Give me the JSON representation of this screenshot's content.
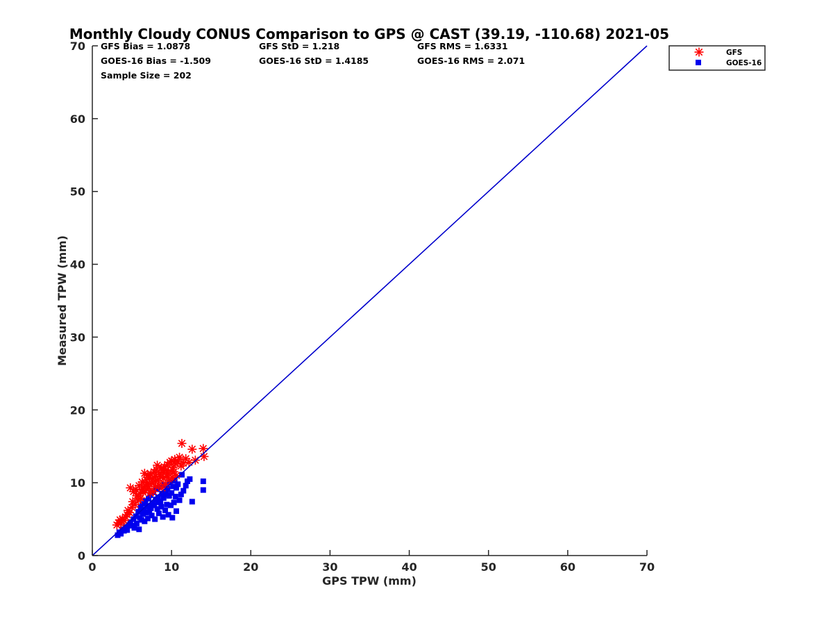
{
  "chart_data": {
    "type": "scatter",
    "title": "Monthly Cloudy CONUS Comparison to GPS @ CAST (39.19, -110.68) 2021-05",
    "xlabel": "GPS TPW (mm)",
    "ylabel": "Measured TPW (mm)",
    "xlim": [
      0,
      70
    ],
    "ylim": [
      0,
      70
    ],
    "xticks": [
      "0",
      "10",
      "20",
      "30",
      "40",
      "50",
      "60",
      "70"
    ],
    "yticks": [
      "0",
      "10",
      "20",
      "30",
      "40",
      "50",
      "60",
      "70"
    ],
    "grid": false,
    "legend_position": "top-right",
    "stats": {
      "gfs_bias": "GFS Bias = 1.0878",
      "goes_bias": "GOES-16 Bias = -1.509",
      "gfs_std": "GFS StD = 1.218",
      "goes_std": "GOES-16 StD = 1.4185",
      "gfs_rms": "GFS RMS = 1.6331",
      "goes_rms": "GOES-16 RMS = 2.071",
      "sample_size": "Sample Size = 202"
    },
    "reference_line": {
      "x": [
        0,
        70
      ],
      "y": [
        0,
        70
      ],
      "color": "#0000cc"
    },
    "series": [
      {
        "name": "GFS",
        "marker": "asterisk",
        "color": "#ff0000",
        "points": [
          [
            3.1,
            4.2
          ],
          [
            3.3,
            4.5
          ],
          [
            3.5,
            4.9
          ],
          [
            3.6,
            4.4
          ],
          [
            3.8,
            5.0
          ],
          [
            4.0,
            4.8
          ],
          [
            4.2,
            5.3
          ],
          [
            4.4,
            5.6
          ],
          [
            4.5,
            6.2
          ],
          [
            4.7,
            5.9
          ],
          [
            4.8,
            9.3
          ],
          [
            5.0,
            6.6
          ],
          [
            5.1,
            7.4
          ],
          [
            5.2,
            8.8
          ],
          [
            5.4,
            7.0
          ],
          [
            5.5,
            9.1
          ],
          [
            5.6,
            8.2
          ],
          [
            5.8,
            7.6
          ],
          [
            5.9,
            9.6
          ],
          [
            6.0,
            8.5
          ],
          [
            6.1,
            7.9
          ],
          [
            6.2,
            9.0
          ],
          [
            6.3,
            10.1
          ],
          [
            6.4,
            8.7
          ],
          [
            6.5,
            9.4
          ],
          [
            6.6,
            11.3
          ],
          [
            6.7,
            8.9
          ],
          [
            6.8,
            10.4
          ],
          [
            6.9,
            9.8
          ],
          [
            7.0,
            11.0
          ],
          [
            7.1,
            9.2
          ],
          [
            7.2,
            10.7
          ],
          [
            7.3,
            8.6
          ],
          [
            7.4,
            11.2
          ],
          [
            7.5,
            9.9
          ],
          [
            7.6,
            10.5
          ],
          [
            7.7,
            8.8
          ],
          [
            7.8,
            11.5
          ],
          [
            7.9,
            10.2
          ],
          [
            8.0,
            9.5
          ],
          [
            8.1,
            11.8
          ],
          [
            8.2,
            12.4
          ],
          [
            8.3,
            10.3
          ],
          [
            8.4,
            9.7
          ],
          [
            8.5,
            11.1
          ],
          [
            8.6,
            10.8
          ],
          [
            8.7,
            12.0
          ],
          [
            8.8,
            9.3
          ],
          [
            8.9,
            11.4
          ],
          [
            9.0,
            10.6
          ],
          [
            9.1,
            12.2
          ],
          [
            9.2,
            9.8
          ],
          [
            9.3,
            11.7
          ],
          [
            9.4,
            10.9
          ],
          [
            9.5,
            12.5
          ],
          [
            9.6,
            11.3
          ],
          [
            9.7,
            10.4
          ],
          [
            9.8,
            12.8
          ],
          [
            9.9,
            11.6
          ],
          [
            10.0,
            13.0
          ],
          [
            10.1,
            10.7
          ],
          [
            10.2,
            12.1
          ],
          [
            10.3,
            11.5
          ],
          [
            10.4,
            13.2
          ],
          [
            10.5,
            12.6
          ],
          [
            10.6,
            11.0
          ],
          [
            10.8,
            12.9
          ],
          [
            11.0,
            13.5
          ],
          [
            11.2,
            12.3
          ],
          [
            11.3,
            15.4
          ],
          [
            11.5,
            12.7
          ],
          [
            11.8,
            13.3
          ],
          [
            12.2,
            12.8
          ],
          [
            12.6,
            14.6
          ],
          [
            13.0,
            13.1
          ],
          [
            14.0,
            14.7
          ],
          [
            14.1,
            13.6
          ],
          [
            7.0,
            9.6
          ],
          [
            8.0,
            10.9
          ],
          [
            9.0,
            11.9
          ]
        ]
      },
      {
        "name": "GOES-16",
        "marker": "square",
        "color": "#0000ee",
        "points": [
          [
            3.2,
            2.8
          ],
          [
            3.4,
            3.2
          ],
          [
            3.6,
            3.0
          ],
          [
            3.8,
            3.6
          ],
          [
            4.0,
            3.4
          ],
          [
            4.2,
            3.9
          ],
          [
            4.4,
            3.5
          ],
          [
            4.6,
            4.2
          ],
          [
            4.8,
            4.6
          ],
          [
            5.0,
            4.1
          ],
          [
            5.2,
            5.0
          ],
          [
            5.3,
            3.8
          ],
          [
            5.5,
            5.4
          ],
          [
            5.6,
            4.4
          ],
          [
            5.8,
            6.0
          ],
          [
            5.9,
            3.6
          ],
          [
            6.0,
            5.2
          ],
          [
            6.1,
            6.6
          ],
          [
            6.2,
            4.9
          ],
          [
            6.3,
            7.1
          ],
          [
            6.4,
            5.7
          ],
          [
            6.5,
            6.3
          ],
          [
            6.6,
            4.7
          ],
          [
            6.7,
            7.5
          ],
          [
            6.8,
            5.9
          ],
          [
            6.9,
            6.8
          ],
          [
            7.0,
            5.1
          ],
          [
            7.1,
            7.8
          ],
          [
            7.2,
            6.1
          ],
          [
            7.3,
            8.3
          ],
          [
            7.4,
            6.5
          ],
          [
            7.5,
            5.5
          ],
          [
            7.6,
            7.2
          ],
          [
            7.7,
            8.7
          ],
          [
            7.8,
            6.9
          ],
          [
            7.9,
            5.0
          ],
          [
            8.0,
            7.7
          ],
          [
            8.1,
            9.1
          ],
          [
            8.2,
            6.4
          ],
          [
            8.3,
            8.0
          ],
          [
            8.4,
            5.8
          ],
          [
            8.5,
            9.4
          ],
          [
            8.6,
            7.4
          ],
          [
            8.7,
            6.7
          ],
          [
            8.8,
            8.5
          ],
          [
            8.9,
            5.3
          ],
          [
            9.0,
            7.9
          ],
          [
            9.1,
            9.7
          ],
          [
            9.2,
            6.2
          ],
          [
            9.3,
            8.8
          ],
          [
            9.4,
            7.0
          ],
          [
            9.5,
            9.2
          ],
          [
            9.6,
            5.6
          ],
          [
            9.7,
            8.2
          ],
          [
            9.8,
            10.0
          ],
          [
            9.9,
            6.9
          ],
          [
            10.0,
            8.6
          ],
          [
            10.1,
            5.2
          ],
          [
            10.2,
            9.5
          ],
          [
            10.3,
            7.3
          ],
          [
            10.4,
            10.3
          ],
          [
            10.5,
            8.1
          ],
          [
            10.6,
            6.1
          ],
          [
            10.8,
            9.8
          ],
          [
            11.0,
            7.6
          ],
          [
            11.2,
            8.4
          ],
          [
            11.3,
            11.1
          ],
          [
            11.5,
            8.9
          ],
          [
            11.8,
            9.6
          ],
          [
            12.0,
            10.2
          ],
          [
            12.3,
            10.5
          ],
          [
            12.6,
            7.4
          ],
          [
            14.0,
            10.2
          ],
          [
            14.0,
            9.0
          ],
          [
            8.3,
            7.3
          ],
          [
            9.2,
            8.4
          ],
          [
            7.1,
            6.8
          ],
          [
            10.6,
            9.3
          ]
        ]
      }
    ]
  }
}
